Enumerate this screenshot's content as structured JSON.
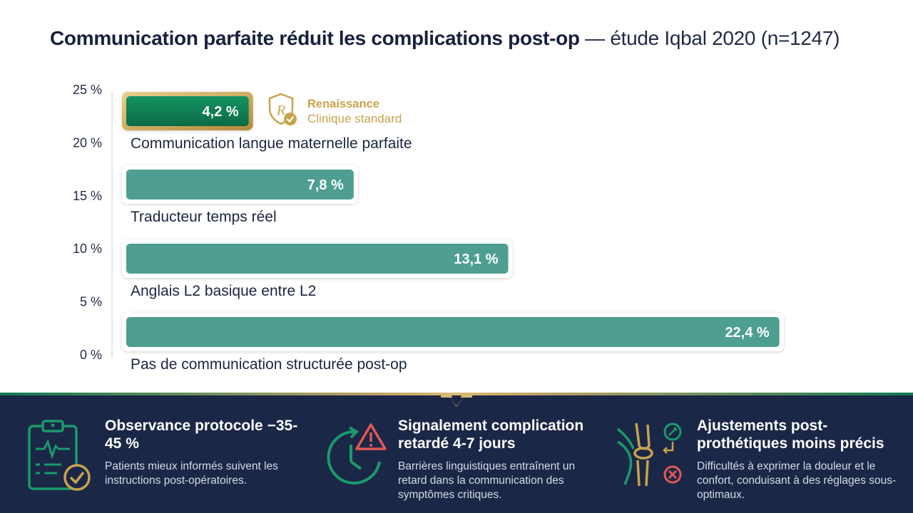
{
  "title": {
    "bold": "Communication parfaite réduit les complications post-op",
    "light": " — étude Iqbal 2020 (n=1247)"
  },
  "badge": {
    "brand": "Renaissance",
    "subtitle": "Clinique standard",
    "icon": "shield-check-icon"
  },
  "colors": {
    "bar": "#4e9e92",
    "bar_highlight": "#0f7a52",
    "gold": "#c8a34e",
    "navy": "#1b2746",
    "accent_green": "#0f7a52"
  },
  "chart_data": {
    "type": "bar",
    "orientation": "horizontal",
    "categories": [
      "Communication langue maternelle parfaite",
      "Traducteur temps réel",
      "Anglais L2 basique entre L2",
      "Pas de communication structurée post-op"
    ],
    "values": [
      4.2,
      7.8,
      13.1,
      22.4
    ],
    "value_labels": [
      "4,2 %",
      "7,8 %",
      "13,1 %",
      "22,4 %"
    ],
    "highlight_index": 0,
    "axis_ticks": [
      "25 %",
      "20 %",
      "15 %",
      "10 %",
      "5 %",
      "0 %"
    ],
    "xlim": [
      0,
      25
    ]
  },
  "cards": [
    {
      "icon": "clipboard-heartbeat-check-icon",
      "heading": "Observance protocole −35-45 %",
      "text": "Patients mieux informés suivent les instructions post-opératoires."
    },
    {
      "icon": "clock-warning-icon",
      "heading": "Signalement complication retardé 4-7 jours",
      "text": "Barrières linguistiques entraînent un retard dans la communication des symptômes critiques."
    },
    {
      "icon": "knee-joint-wrench-icon",
      "heading": "Ajustements post-prothétiques moins précis",
      "text": "Difficultés à exprimer la douleur et le confort, conduisant à des réglages sous-optimaux."
    }
  ]
}
